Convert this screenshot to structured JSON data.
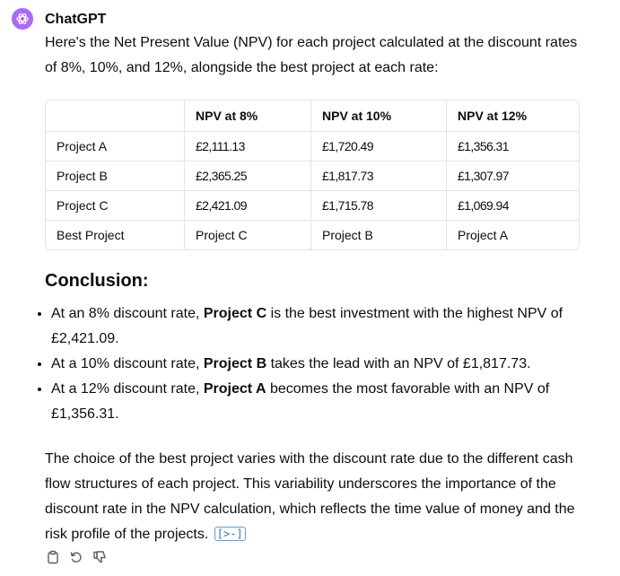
{
  "author": "ChatGPT",
  "intro": "Here's the Net Present Value (NPV) for each project calculated at the discount rates of 8%, 10%, and 12%, alongside the best project at each rate:",
  "table": {
    "headers": [
      "",
      "NPV at 8%",
      "NPV at 10%",
      "NPV at 12%"
    ],
    "rows": [
      [
        "Project A",
        "£2,111.13",
        "£1,720.49",
        "£1,356.31"
      ],
      [
        "Project B",
        "£2,365.25",
        "£1,817.73",
        "£1,307.97"
      ],
      [
        "Project C",
        "£2,421.09",
        "£1,715.78",
        "£1,069.94"
      ],
      [
        "Best Project",
        "Project C",
        "Project B",
        "Project A"
      ]
    ]
  },
  "conclusion": {
    "heading": "Conclusion:",
    "items": [
      {
        "pre": "At an 8% discount rate, ",
        "bold": "Project C",
        "post": " is the best investment with the highest NPV of £2,421.09."
      },
      {
        "pre": "At a 10% discount rate, ",
        "bold": "Project B",
        "post": " takes the lead with an NPV of £1,817.73."
      },
      {
        "pre": "At a 12% discount rate, ",
        "bold": "Project A",
        "post": " becomes the most favorable with an NPV of £1,356.31."
      }
    ]
  },
  "closing": "The choice of the best project varies with the discount rate due to the different cash flow structures of each project. This variability underscores the importance of the discount rate in the NPV calculation, which reflects the time value of money and the risk profile of the projects.",
  "analysis_link": "[>-]",
  "icons": {
    "avatar": "openai-logo-icon",
    "copy": "clipboard-icon",
    "regenerate": "regenerate-icon",
    "dislike": "thumbs-down-icon"
  },
  "colors": {
    "avatar_bg": "#ab68ff",
    "link": "#1a73e8",
    "border": "#e3e3e3"
  }
}
